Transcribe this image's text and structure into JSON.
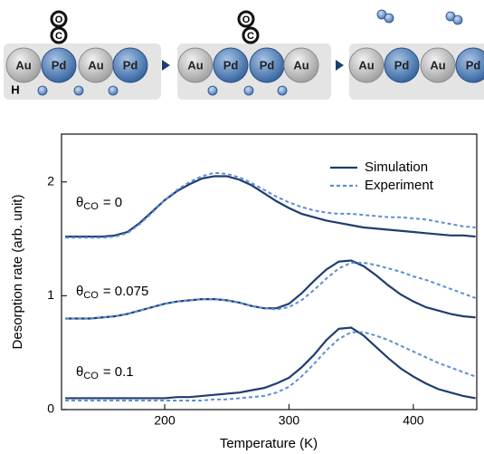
{
  "schematic": {
    "panels": [
      {
        "atoms": [
          "Au",
          "Pd",
          "Au",
          "Pd"
        ],
        "co": [
          "O",
          "C"
        ],
        "h_label": "H"
      },
      {
        "atoms": [
          "Au",
          "Pd",
          "Pd",
          "Au"
        ],
        "co": [
          "O",
          "C"
        ]
      },
      {
        "atoms": [
          "Au",
          "Pd",
          "Au",
          "Pd"
        ]
      }
    ]
  },
  "chart_data": {
    "type": "line",
    "xlabel": "Temperature (K)",
    "ylabel": "Desorption rate (arb. unit)",
    "xlim": [
      117,
      451
    ],
    "ylim": [
      0,
      2.42
    ],
    "xticks": [
      200,
      300,
      400
    ],
    "yticks": [
      0,
      1,
      2
    ],
    "legend": "upper right",
    "x": [
      120,
      130,
      140,
      150,
      160,
      170,
      180,
      190,
      200,
      210,
      220,
      230,
      240,
      250,
      260,
      270,
      280,
      290,
      300,
      310,
      320,
      330,
      340,
      350,
      360,
      370,
      380,
      390,
      400,
      410,
      420,
      430,
      440,
      450
    ],
    "series": [
      {
        "name": "Simulation",
        "color": "#1f3d6e",
        "dashed": false,
        "values": [
          1.52,
          1.52,
          1.52,
          1.52,
          1.53,
          1.56,
          1.64,
          1.74,
          1.84,
          1.92,
          1.98,
          2.03,
          2.05,
          2.05,
          2.02,
          1.97,
          1.9,
          1.83,
          1.77,
          1.72,
          1.69,
          1.66,
          1.64,
          1.62,
          1.6,
          1.59,
          1.58,
          1.57,
          1.56,
          1.55,
          1.54,
          1.53,
          1.53,
          1.52
        ]
      },
      {
        "name": "Experiment",
        "color": "#5b8fd1",
        "dashed": true,
        "values": [
          1.51,
          1.51,
          1.51,
          1.51,
          1.52,
          1.55,
          1.63,
          1.73,
          1.84,
          1.93,
          2.0,
          2.05,
          2.08,
          2.07,
          2.04,
          1.99,
          1.93,
          1.87,
          1.82,
          1.78,
          1.75,
          1.73,
          1.72,
          1.72,
          1.71,
          1.7,
          1.69,
          1.69,
          1.68,
          1.67,
          1.65,
          1.63,
          1.61,
          1.6
        ]
      },
      {
        "color": "#1f3d6e",
        "dashed": false,
        "values": [
          0.8,
          0.8,
          0.8,
          0.81,
          0.82,
          0.84,
          0.87,
          0.9,
          0.93,
          0.95,
          0.96,
          0.97,
          0.97,
          0.96,
          0.94,
          0.91,
          0.89,
          0.89,
          0.93,
          1.02,
          1.13,
          1.23,
          1.3,
          1.31,
          1.26,
          1.18,
          1.09,
          1.01,
          0.95,
          0.9,
          0.87,
          0.84,
          0.82,
          0.81
        ]
      },
      {
        "color": "#5b8fd1",
        "dashed": true,
        "values": [
          0.8,
          0.8,
          0.8,
          0.81,
          0.82,
          0.84,
          0.87,
          0.9,
          0.93,
          0.95,
          0.96,
          0.97,
          0.97,
          0.96,
          0.94,
          0.91,
          0.89,
          0.88,
          0.9,
          0.96,
          1.05,
          1.15,
          1.24,
          1.29,
          1.29,
          1.27,
          1.24,
          1.21,
          1.17,
          1.14,
          1.1,
          1.06,
          1.02,
          0.98
        ]
      },
      {
        "color": "#1f3d6e",
        "dashed": false,
        "values": [
          0.1,
          0.1,
          0.1,
          0.1,
          0.1,
          0.1,
          0.1,
          0.1,
          0.1,
          0.11,
          0.11,
          0.12,
          0.13,
          0.14,
          0.15,
          0.17,
          0.19,
          0.23,
          0.28,
          0.37,
          0.48,
          0.61,
          0.71,
          0.72,
          0.65,
          0.55,
          0.45,
          0.36,
          0.29,
          0.23,
          0.18,
          0.15,
          0.12,
          0.1
        ]
      },
      {
        "color": "#5b8fd1",
        "dashed": true,
        "values": [
          0.08,
          0.08,
          0.08,
          0.08,
          0.08,
          0.08,
          0.08,
          0.08,
          0.08,
          0.08,
          0.08,
          0.08,
          0.09,
          0.09,
          0.1,
          0.11,
          0.12,
          0.15,
          0.2,
          0.29,
          0.4,
          0.52,
          0.62,
          0.68,
          0.68,
          0.65,
          0.61,
          0.56,
          0.51,
          0.46,
          0.41,
          0.37,
          0.33,
          0.29
        ]
      }
    ],
    "annotations": [
      {
        "symbol": "θ",
        "subscript": "CO",
        "text": "= 0"
      },
      {
        "symbol": "θ",
        "subscript": "CO",
        "text": "= 0.075"
      },
      {
        "symbol": "θ",
        "subscript": "CO",
        "text": "= 0.1"
      }
    ]
  }
}
